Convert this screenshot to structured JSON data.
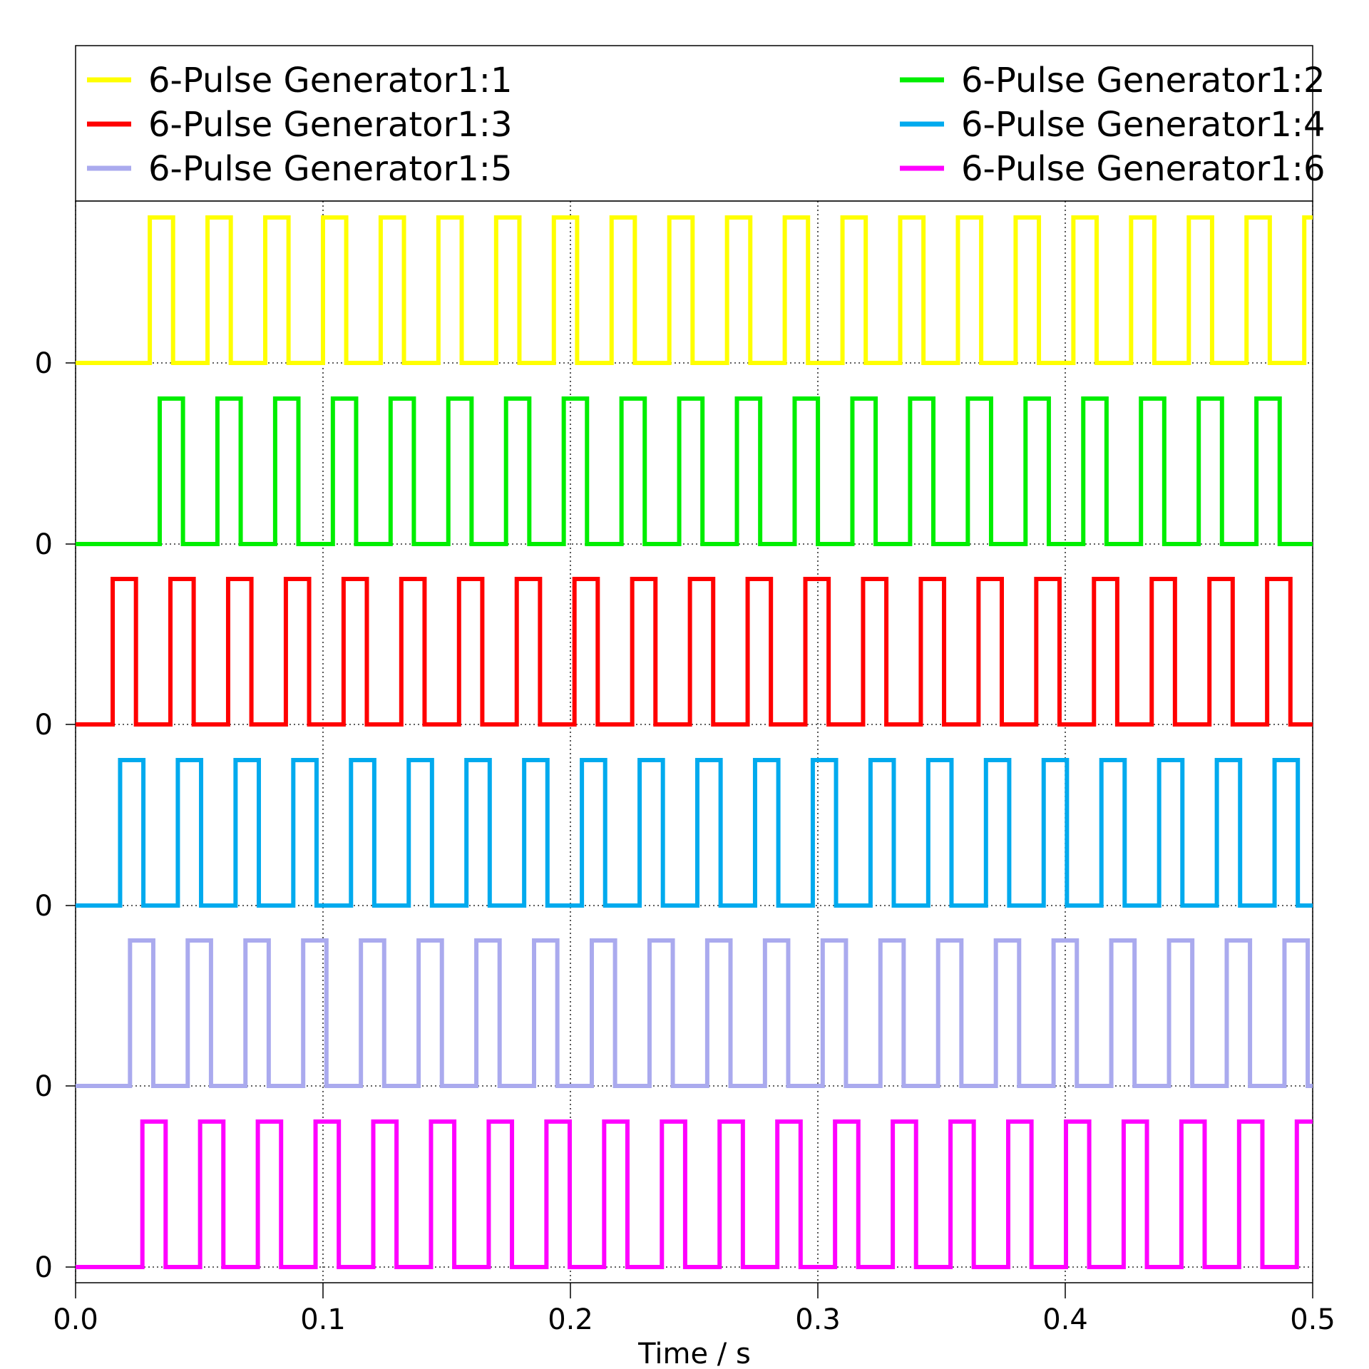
{
  "chart_data": {
    "type": "line",
    "subtype": "stacked digital pulse traces",
    "xlabel": "Time / s",
    "xlim": [
      0.0,
      0.5
    ],
    "x_ticks": [
      "0.0",
      "0.1",
      "0.2",
      "0.3",
      "0.4",
      "0.5"
    ],
    "y_tick_label": "0",
    "grid": true,
    "legend_position": "top (above plot area, two columns)",
    "pulse_period_s": 0.02333,
    "pulse_width_s": 0.0094,
    "series": [
      {
        "name": "6-Pulse Generator1:1",
        "color": "#ffff00",
        "first_rise_s": 0.03,
        "last_fall_s": 0.4955,
        "edge_at_end": true
      },
      {
        "name": "6-Pulse Generator1:2",
        "color": "#00ee00",
        "first_rise_s": 0.034,
        "last_fall_s": 0.4995,
        "edge_at_end": true
      },
      {
        "name": "6-Pulse Generator1:3",
        "color": "#ff0000",
        "first_rise_s": 0.015,
        "last_fall_s": 0.486,
        "edge_at_end": false
      },
      {
        "name": "6-Pulse Generator1:4",
        "color": "#00aaee",
        "first_rise_s": 0.018,
        "last_fall_s": 0.4995,
        "edge_at_end": false
      },
      {
        "name": "6-Pulse Generator1:5",
        "color": "#aaaaee",
        "first_rise_s": 0.022,
        "last_fall_s": 0.4955,
        "edge_at_end": false
      },
      {
        "name": "6-Pulse Generator1:6",
        "color": "#ff00ff",
        "first_rise_s": 0.027,
        "last_fall_s": 0.4995,
        "edge_at_end": true
      }
    ]
  }
}
